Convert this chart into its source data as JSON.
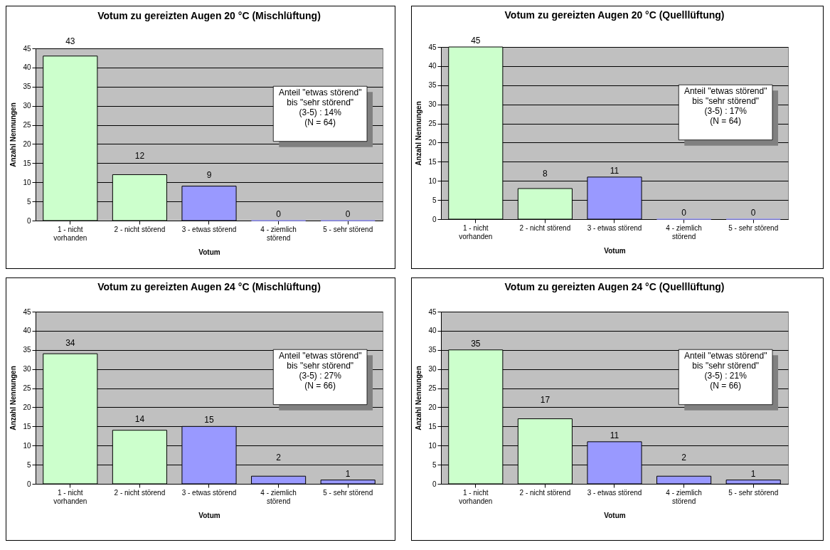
{
  "chart_data": [
    {
      "type": "bar",
      "title": "Votum zu gereizten Augen 20 °C (Mischlüftung)",
      "xlabel": "Votum",
      "ylabel": "Anzahl Nennungen",
      "categories": [
        "1 - nicht vorhanden",
        "2 - nicht störend",
        "3 - etwas störend",
        "4 - ziemlich störend",
        "5 - sehr störend"
      ],
      "values": [
        43,
        12,
        9,
        0,
        0
      ],
      "colors": [
        "#ccffcc",
        "#ccffcc",
        "#9999ff",
        "#9999ff",
        "#9999ff"
      ],
      "ylim": [
        0,
        45
      ],
      "yticks": [
        0,
        5,
        10,
        15,
        20,
        25,
        30,
        35,
        40,
        45
      ],
      "grid": "y",
      "data_labels": true,
      "annotations": [
        "Anteil \"etwas störend\"\nbis \"sehr störend\"\n(3-5) : 14%\n(N = 64)"
      ]
    },
    {
      "type": "bar",
      "title": "Votum zu gereizten Augen 20 °C (Quelllüftung)",
      "xlabel": "Votum",
      "ylabel": "Anzahl Nennungen",
      "categories": [
        "1 - nicht vorhanden",
        "2 - nicht störend",
        "3 - etwas störend",
        "4 - ziemlich störend",
        "5 - sehr störend"
      ],
      "values": [
        45,
        8,
        11,
        0,
        0
      ],
      "colors": [
        "#ccffcc",
        "#ccffcc",
        "#9999ff",
        "#9999ff",
        "#9999ff"
      ],
      "ylim": [
        0,
        45
      ],
      "yticks": [
        0,
        5,
        10,
        15,
        20,
        25,
        30,
        35,
        40,
        45
      ],
      "grid": "y",
      "data_labels": true,
      "annotations": [
        "Anteil \"etwas störend\"\nbis \"sehr störend\"\n(3-5) : 17%\n(N = 64)"
      ]
    },
    {
      "type": "bar",
      "title": "Votum zu gereizten Augen 24 °C (Mischlüftung)",
      "xlabel": "Votum",
      "ylabel": "Anzahl Nennungen",
      "categories": [
        "1 - nicht vorhanden",
        "2 - nicht störend",
        "3 - etwas störend",
        "4 - ziemlich störend",
        "5 - sehr störend"
      ],
      "values": [
        34,
        14,
        15,
        2,
        1
      ],
      "colors": [
        "#ccffcc",
        "#ccffcc",
        "#9999ff",
        "#9999ff",
        "#9999ff"
      ],
      "ylim": [
        0,
        45
      ],
      "yticks": [
        0,
        5,
        10,
        15,
        20,
        25,
        30,
        35,
        40,
        45
      ],
      "grid": "y",
      "data_labels": true,
      "annotations": [
        "Anteil \"etwas störend\"\nbis \"sehr störend\"\n(3-5) : 27%\n(N = 66)"
      ]
    },
    {
      "type": "bar",
      "title": "Votum zu gereizten Augen 24 °C (Quelllüftung)",
      "xlabel": "Votum",
      "ylabel": "Anzahl Nennungen",
      "categories": [
        "1 - nicht vorhanden",
        "2 - nicht störend",
        "3 - etwas störend",
        "4 - ziemlich störend",
        "5 - sehr störend"
      ],
      "values": [
        35,
        17,
        11,
        2,
        1
      ],
      "colors": [
        "#ccffcc",
        "#ccffcc",
        "#9999ff",
        "#9999ff",
        "#9999ff"
      ],
      "ylim": [
        0,
        45
      ],
      "yticks": [
        0,
        5,
        10,
        15,
        20,
        25,
        30,
        35,
        40,
        45
      ],
      "grid": "y",
      "data_labels": true,
      "annotations": [
        "Anteil \"etwas störend\"\nbis \"sehr störend\"\n(3-5) : 21%\n(N = 66)"
      ]
    }
  ]
}
